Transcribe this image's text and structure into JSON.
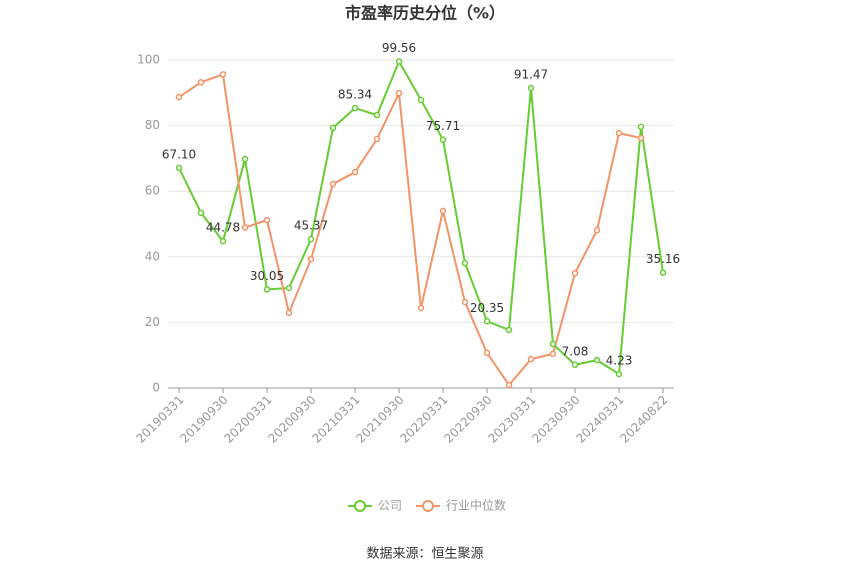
{
  "chart_data": {
    "type": "line",
    "title": "市盈率历史分位（%）",
    "categories": [
      "20190331",
      null,
      "20190930",
      null,
      "20200331",
      null,
      "20200930",
      null,
      "20210331",
      null,
      "20210930",
      null,
      "20220331",
      null,
      "20220930",
      null,
      "20230331",
      null,
      "20230930",
      null,
      "20240331",
      null,
      "20240822"
    ],
    "series": [
      {
        "name": "公司",
        "color": "#66cc33",
        "values": [
          67.1,
          53.4,
          44.78,
          69.8,
          30.05,
          30.5,
          45.37,
          79.3,
          85.34,
          83.2,
          99.56,
          87.8,
          75.71,
          38.1,
          20.35,
          17.7,
          91.47,
          13.4,
          7.08,
          8.5,
          4.23,
          79.6,
          35.16
        ],
        "value_labels": [
          "67.10",
          null,
          "44.78",
          null,
          "30.05",
          null,
          "45.37",
          null,
          "85.34",
          null,
          "99.56",
          null,
          "75.71",
          null,
          "20.35",
          null,
          "91.47",
          null,
          "7.08",
          null,
          "4.23",
          null,
          "35.16"
        ]
      },
      {
        "name": "行业中位数",
        "color": "#f29467",
        "values": [
          88.7,
          93.2,
          95.6,
          48.9,
          51.2,
          22.9,
          39.3,
          62.2,
          65.8,
          75.9,
          89.9,
          24.4,
          54.0,
          26.2,
          10.7,
          0.9,
          8.8,
          10.4,
          35.0,
          48.1,
          77.7,
          76.2,
          null
        ]
      }
    ],
    "ylim": [
      0,
      100
    ],
    "yticks": [
      0,
      20,
      40,
      60,
      80,
      100
    ],
    "grid": true,
    "source": "数据来源：恒生聚源"
  }
}
